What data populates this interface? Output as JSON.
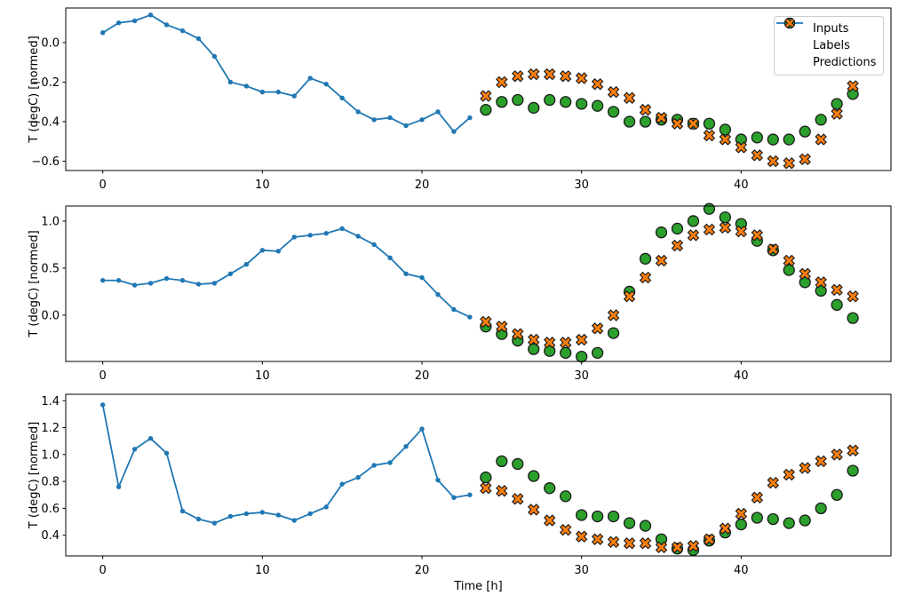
{
  "colors": {
    "inputs": "#1f77b4",
    "labels": "#2ca02c",
    "predictions": "#ff7f0e",
    "marker_edge": "#1a1a1a",
    "axis": "#000000",
    "tick_text": "#000000",
    "legend_border": "#cccccc",
    "background": "#ffffff"
  },
  "legend": {
    "items": [
      {
        "label": "Inputs",
        "marker": "line-dot"
      },
      {
        "label": "Labels",
        "marker": "circle"
      },
      {
        "label": "Predictions",
        "marker": "x"
      }
    ]
  },
  "chart_data": [
    {
      "type": "line",
      "ylabel": "T (degC) [normed]",
      "xlabel": "",
      "legend_visible": true,
      "grid": false,
      "xlim": [
        -2.32,
        49.39
      ],
      "ylim": [
        -0.647,
        0.175
      ],
      "xticks": [
        0,
        10,
        20,
        30,
        40
      ],
      "xtick_labels": [
        "0",
        "10",
        "20",
        "30",
        "40"
      ],
      "yticks": [
        0.0,
        -0.2,
        -0.4,
        -0.6
      ],
      "ytick_labels": [
        "0.0",
        "−0.2",
        "−0.4",
        "−0.6"
      ],
      "series": [
        {
          "name": "Inputs",
          "type": "line",
          "marker": "dot",
          "x": [
            0,
            1,
            2,
            3,
            4,
            5,
            6,
            7,
            8,
            9,
            10,
            11,
            12,
            13,
            14,
            15,
            16,
            17,
            18,
            19,
            20,
            21,
            22,
            23
          ],
          "values": [
            0.05,
            0.1,
            0.11,
            0.14,
            0.09,
            0.06,
            0.02,
            -0.07,
            -0.2,
            -0.22,
            -0.25,
            -0.25,
            -0.27,
            -0.18,
            -0.21,
            -0.28,
            -0.35,
            -0.39,
            -0.38,
            -0.42,
            -0.39,
            -0.35,
            -0.45,
            -0.38
          ]
        },
        {
          "name": "Labels",
          "type": "scatter",
          "marker": "circle",
          "x": [
            24,
            25,
            26,
            27,
            28,
            29,
            30,
            31,
            32,
            33,
            34,
            35,
            36,
            37,
            38,
            39,
            40,
            41,
            42,
            43,
            44,
            45,
            46,
            47
          ],
          "values": [
            -0.34,
            -0.3,
            -0.29,
            -0.33,
            -0.29,
            -0.3,
            -0.31,
            -0.32,
            -0.35,
            -0.4,
            -0.4,
            -0.39,
            -0.39,
            -0.41,
            -0.41,
            -0.44,
            -0.49,
            -0.48,
            -0.49,
            -0.49,
            -0.45,
            -0.39,
            -0.31,
            -0.26
          ]
        },
        {
          "name": "Predictions",
          "type": "scatter",
          "marker": "X",
          "x": [
            24,
            25,
            26,
            27,
            28,
            29,
            30,
            31,
            32,
            33,
            34,
            35,
            36,
            37,
            38,
            39,
            40,
            41,
            42,
            43,
            44,
            45,
            46,
            47
          ],
          "values": [
            -0.27,
            -0.2,
            -0.17,
            -0.16,
            -0.16,
            -0.17,
            -0.18,
            -0.21,
            -0.25,
            -0.28,
            -0.34,
            -0.38,
            -0.41,
            -0.41,
            -0.47,
            -0.49,
            -0.53,
            -0.57,
            -0.6,
            -0.61,
            -0.59,
            -0.49,
            -0.36,
            -0.22
          ]
        }
      ]
    },
    {
      "type": "line",
      "ylabel": "T (degC) [normed]",
      "xlabel": "",
      "legend_visible": false,
      "grid": false,
      "xlim": [
        -2.32,
        49.39
      ],
      "ylim": [
        -0.491,
        1.16
      ],
      "xticks": [
        0,
        10,
        20,
        30,
        40
      ],
      "xtick_labels": [
        "0",
        "10",
        "20",
        "30",
        "40"
      ],
      "yticks": [
        0.0,
        0.5,
        1.0
      ],
      "ytick_labels": [
        "0.0",
        "0.5",
        "1.0"
      ],
      "series": [
        {
          "name": "Inputs",
          "type": "line",
          "marker": "dot",
          "x": [
            0,
            1,
            2,
            3,
            4,
            5,
            6,
            7,
            8,
            9,
            10,
            11,
            12,
            13,
            14,
            15,
            16,
            17,
            18,
            19,
            20,
            21,
            22,
            23
          ],
          "values": [
            0.37,
            0.37,
            0.32,
            0.34,
            0.39,
            0.37,
            0.33,
            0.34,
            0.44,
            0.54,
            0.69,
            0.68,
            0.83,
            0.85,
            0.87,
            0.92,
            0.84,
            0.75,
            0.61,
            0.44,
            0.4,
            0.22,
            0.06,
            -0.02
          ]
        },
        {
          "name": "Labels",
          "type": "scatter",
          "marker": "circle",
          "x": [
            24,
            25,
            26,
            27,
            28,
            29,
            30,
            31,
            32,
            33,
            34,
            35,
            36,
            37,
            38,
            39,
            40,
            41,
            42,
            43,
            44,
            45,
            46,
            47
          ],
          "values": [
            -0.12,
            -0.2,
            -0.27,
            -0.36,
            -0.38,
            -0.4,
            -0.44,
            -0.4,
            -0.19,
            0.25,
            0.6,
            0.88,
            0.92,
            1.0,
            1.13,
            1.04,
            0.97,
            0.79,
            0.69,
            0.48,
            0.35,
            0.26,
            0.11,
            -0.03
          ]
        },
        {
          "name": "Predictions",
          "type": "scatter",
          "marker": "X",
          "x": [
            24,
            25,
            26,
            27,
            28,
            29,
            30,
            31,
            32,
            33,
            34,
            35,
            36,
            37,
            38,
            39,
            40,
            41,
            42,
            43,
            44,
            45,
            46,
            47
          ],
          "values": [
            -0.07,
            -0.12,
            -0.2,
            -0.26,
            -0.29,
            -0.29,
            -0.26,
            -0.14,
            0.0,
            0.2,
            0.4,
            0.58,
            0.74,
            0.85,
            0.91,
            0.93,
            0.89,
            0.85,
            0.7,
            0.58,
            0.44,
            0.35,
            0.27,
            0.2
          ]
        }
      ]
    },
    {
      "type": "line",
      "ylabel": "T (degC) [normed]",
      "xlabel": "Time [h]",
      "legend_visible": false,
      "grid": false,
      "xlim": [
        -2.32,
        49.39
      ],
      "ylim": [
        0.246,
        1.448
      ],
      "xticks": [
        0,
        10,
        20,
        30,
        40
      ],
      "xtick_labels": [
        "0",
        "10",
        "20",
        "30",
        "40"
      ],
      "yticks": [
        0.4,
        0.6,
        0.8,
        1.0,
        1.2,
        1.4
      ],
      "ytick_labels": [
        "0.4",
        "0.6",
        "0.8",
        "1.0",
        "1.2",
        "1.4"
      ],
      "series": [
        {
          "name": "Inputs",
          "type": "line",
          "marker": "dot",
          "x": [
            0,
            1,
            2,
            3,
            4,
            5,
            6,
            7,
            8,
            9,
            10,
            11,
            12,
            13,
            14,
            15,
            16,
            17,
            18,
            19,
            20,
            21,
            22,
            23
          ],
          "values": [
            1.37,
            0.76,
            1.04,
            1.12,
            1.01,
            0.58,
            0.52,
            0.49,
            0.54,
            0.56,
            0.57,
            0.55,
            0.51,
            0.56,
            0.61,
            0.78,
            0.83,
            0.92,
            0.94,
            1.06,
            1.19,
            0.81,
            0.68,
            0.7
          ]
        },
        {
          "name": "Labels",
          "type": "scatter",
          "marker": "circle",
          "x": [
            24,
            25,
            26,
            27,
            28,
            29,
            30,
            31,
            32,
            33,
            34,
            35,
            36,
            37,
            38,
            39,
            40,
            41,
            42,
            43,
            44,
            45,
            46,
            47
          ],
          "values": [
            0.83,
            0.95,
            0.93,
            0.84,
            0.75,
            0.69,
            0.55,
            0.54,
            0.54,
            0.49,
            0.47,
            0.37,
            0.3,
            0.29,
            0.36,
            0.42,
            0.48,
            0.53,
            0.52,
            0.49,
            0.51,
            0.6,
            0.7,
            0.88
          ]
        },
        {
          "name": "Predictions",
          "type": "scatter",
          "marker": "X",
          "x": [
            24,
            25,
            26,
            27,
            28,
            29,
            30,
            31,
            32,
            33,
            34,
            35,
            36,
            37,
            38,
            39,
            40,
            41,
            42,
            43,
            44,
            45,
            46,
            47
          ],
          "values": [
            0.75,
            0.73,
            0.67,
            0.59,
            0.51,
            0.44,
            0.39,
            0.37,
            0.35,
            0.34,
            0.34,
            0.31,
            0.31,
            0.32,
            0.37,
            0.45,
            0.56,
            0.68,
            0.79,
            0.85,
            0.9,
            0.95,
            1.0,
            1.03
          ]
        }
      ]
    }
  ]
}
